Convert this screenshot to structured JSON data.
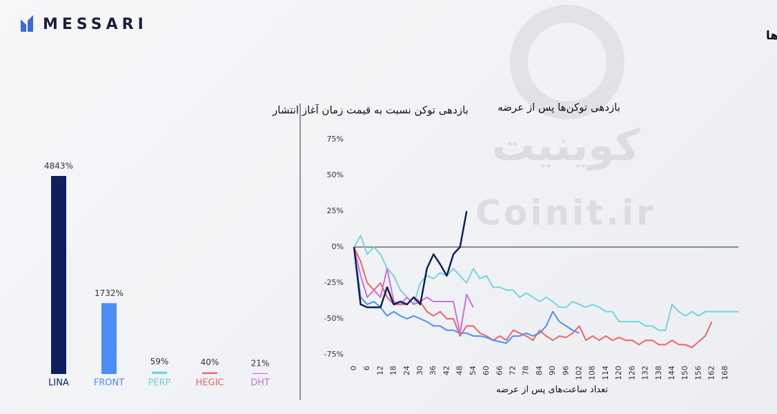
{
  "header": {
    "logo": "MESSARI",
    "title": "بازدهی حاصل از توکن‌های دیفای( DeFi ) پس از انتشار توکن‌ها",
    "watermark": [
      "کوینیت",
      "Coinit.ir"
    ]
  },
  "chart_data": [
    {
      "type": "bar",
      "title": "بازدهی توکن نسبت به قیمت زمان آغاز انتشار",
      "categories": [
        "LINA",
        "FRONT",
        "PERP",
        "HEGIC",
        "DHT"
      ],
      "values": [
        4843,
        1732,
        59,
        40,
        21
      ],
      "value_labels": [
        "4843%",
        "1732%",
        "59%",
        "40%",
        "21%"
      ],
      "colors": [
        "#0d1f5c",
        "#4a8ff5",
        "#6fd6dc",
        "#ef6262",
        "#c96ee0"
      ]
    },
    {
      "type": "line",
      "title": "بازدهی توکن‌ها پس از عرضه",
      "x_label": "تعداد ساعت‌های پس از عرضه",
      "x": [
        0,
        3,
        6,
        9,
        12,
        15,
        18,
        21,
        24,
        27,
        30,
        33,
        36,
        39,
        42,
        45,
        48,
        51,
        54,
        57,
        60,
        63,
        66,
        69,
        72,
        75,
        78,
        81,
        84,
        87,
        90,
        93,
        96,
        99,
        102,
        105,
        108,
        111,
        114,
        117,
        120,
        123,
        126,
        129,
        132,
        135,
        138,
        141,
        144,
        147,
        150,
        153,
        156,
        159,
        162,
        165,
        168,
        171,
        174
      ],
      "xlim": [
        0,
        174
      ],
      "xticks": [
        0,
        6,
        12,
        18,
        24,
        30,
        36,
        42,
        48,
        54,
        60,
        66,
        72,
        78,
        84,
        90,
        96,
        102,
        108,
        114,
        120,
        126,
        132,
        138,
        144,
        150,
        156,
        162,
        168
      ],
      "ylim": [
        -75,
        75
      ],
      "yticks": [
        {
          "value": 75,
          "label": "75%"
        },
        {
          "value": 50,
          "label": "50%"
        },
        {
          "value": 25,
          "label": "25%"
        },
        {
          "value": 0,
          "label": "0%"
        },
        {
          "value": -25,
          "label": "-25%"
        },
        {
          "value": -50,
          "label": "-50%"
        },
        {
          "value": -75,
          "label": "-75%"
        }
      ],
      "zero_line": true,
      "series": [
        {
          "color": "#6fd6dc",
          "values": [
            0,
            8,
            -5,
            0,
            -5,
            -15,
            -20,
            -30,
            -35,
            -40,
            -25,
            -20,
            -22,
            -18,
            -20,
            -15,
            -20,
            -25,
            -15,
            -22,
            -20,
            -28,
            -28,
            -30,
            -30,
            -35,
            -32,
            -35,
            -38,
            -35,
            -38,
            -42,
            -42,
            -38,
            -40,
            -42,
            -40,
            -42,
            -45,
            -45,
            -52,
            -52,
            -52,
            -52,
            -55,
            -55,
            -58,
            -58,
            -40,
            -45,
            -48,
            -45,
            -48,
            -45,
            -45,
            -45,
            -45,
            -45,
            -45
          ]
        },
        {
          "color": "#ef6262",
          "values": [
            0,
            -10,
            -25,
            -30,
            -25,
            -35,
            -40,
            -40,
            -40,
            -35,
            -38,
            -45,
            -48,
            -45,
            -50,
            -50,
            -62,
            -55,
            -55,
            -60,
            -62,
            -65,
            -62,
            -65,
            -58,
            -60,
            -62,
            -65,
            -58,
            -62,
            -65,
            -62,
            -63,
            -60,
            -55,
            -65,
            -62,
            -65,
            -62,
            -65,
            -63,
            -65,
            -65,
            -68,
            -65,
            -65,
            -68,
            -68,
            -65,
            -68,
            -68,
            -70,
            -66,
            -62,
            -52,
            null,
            null,
            null,
            null
          ]
        },
        {
          "color": "#4a8ff5",
          "values": [
            0,
            -35,
            -40,
            -38,
            -42,
            -48,
            -45,
            -48,
            -50,
            -48,
            -50,
            -52,
            -55,
            -55,
            -58,
            -58,
            -60,
            -60,
            -62,
            -62,
            -63,
            -65,
            -66,
            -67,
            -62,
            -62,
            -60,
            -62,
            -60,
            -55,
            -45,
            -52,
            -55,
            -58,
            -60,
            null,
            null,
            null,
            null,
            null,
            null,
            null,
            null,
            null,
            null,
            null,
            null,
            null,
            null,
            null,
            null,
            null,
            null,
            null,
            null,
            null,
            null,
            null,
            null
          ]
        },
        {
          "color": "#c96ee0",
          "values": [
            0,
            -20,
            -35,
            -30,
            -35,
            -15,
            -38,
            -40,
            -35,
            -40,
            -38,
            -35,
            -38,
            -38,
            -38,
            -38,
            -60,
            -33,
            -42,
            null,
            null,
            null,
            null,
            null,
            null,
            null,
            null,
            null,
            null,
            null,
            null,
            null,
            null,
            null,
            null,
            null,
            null,
            null,
            null,
            null,
            null,
            null,
            null,
            null,
            null,
            null,
            null,
            null,
            null,
            null,
            null,
            null,
            null,
            null,
            null,
            null,
            null,
            null,
            null
          ]
        },
        {
          "color": "#0d1f5c",
          "values": [
            0,
            -40,
            -42,
            -42,
            -42,
            -28,
            -40,
            -38,
            -40,
            -35,
            -40,
            -15,
            -5,
            -12,
            -20,
            -5,
            0,
            25,
            null,
            null,
            null,
            null,
            null,
            null,
            null,
            null,
            null,
            null,
            null,
            null,
            null,
            null,
            null,
            null,
            null,
            null,
            null,
            null,
            null,
            null,
            null,
            null,
            null,
            null,
            null,
            null,
            null,
            null,
            null,
            null,
            null,
            null,
            null,
            null,
            null,
            null,
            null,
            null,
            null
          ]
        }
      ]
    }
  ]
}
